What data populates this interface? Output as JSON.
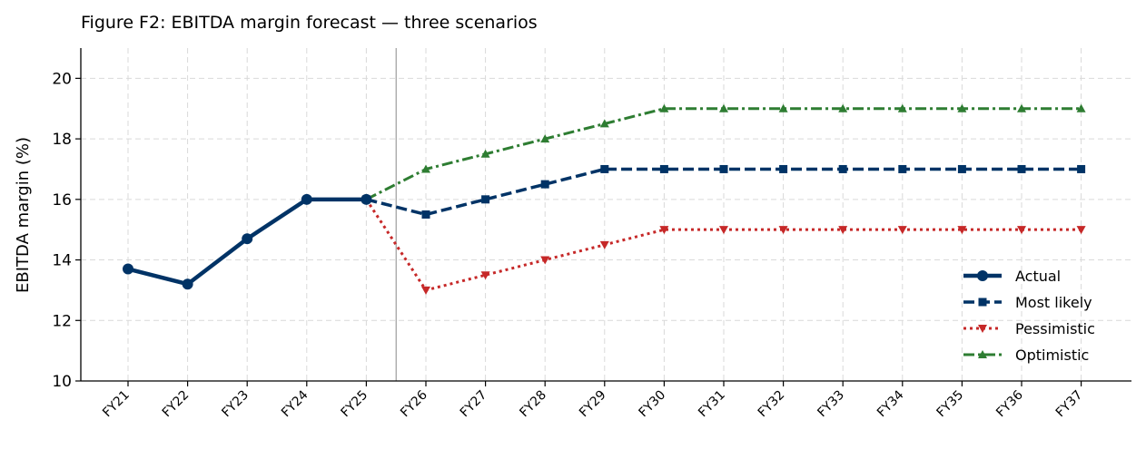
{
  "chart_data": {
    "type": "line",
    "title": "Figure F2: EBITDA margin forecast — three scenarios",
    "ylabel": "EBITDA margin (%)",
    "xlabel": "",
    "categories": [
      "FY21",
      "FY22",
      "FY23",
      "FY24",
      "FY25",
      "FY26",
      "FY27",
      "FY28",
      "FY29",
      "FY30",
      "FY31",
      "FY32",
      "FY33",
      "FY34",
      "FY35",
      "FY36",
      "FY37"
    ],
    "ylim": [
      10,
      21
    ],
    "yticks": [
      10,
      12,
      14,
      16,
      18,
      20
    ],
    "grid": true,
    "legend_position": "lower-right",
    "forecast_divider_between": [
      "FY25",
      "FY26"
    ],
    "series": [
      {
        "name": "Actual",
        "color": "#003366",
        "marker": "circle",
        "line_style": "solid",
        "x": [
          "FY21",
          "FY22",
          "FY23",
          "FY24",
          "FY25"
        ],
        "values": [
          13.7,
          13.2,
          14.7,
          16.0,
          16.0
        ]
      },
      {
        "name": "Most likely",
        "color": "#003366",
        "marker": "square",
        "line_style": "dashed",
        "x": [
          "FY25",
          "FY26",
          "FY27",
          "FY28",
          "FY29",
          "FY30",
          "FY31",
          "FY32",
          "FY33",
          "FY34",
          "FY35",
          "FY36",
          "FY37"
        ],
        "values": [
          16.0,
          15.5,
          16.0,
          16.5,
          17.0,
          17.0,
          17.0,
          17.0,
          17.0,
          17.0,
          17.0,
          17.0,
          17.0
        ]
      },
      {
        "name": "Pessimistic",
        "color": "#c62828",
        "marker": "triangle-down",
        "line_style": "dotted",
        "x": [
          "FY25",
          "FY26",
          "FY27",
          "FY28",
          "FY29",
          "FY30",
          "FY31",
          "FY32",
          "FY33",
          "FY34",
          "FY35",
          "FY36",
          "FY37"
        ],
        "values": [
          16.0,
          13.0,
          13.5,
          14.0,
          14.5,
          15.0,
          15.0,
          15.0,
          15.0,
          15.0,
          15.0,
          15.0,
          15.0
        ]
      },
      {
        "name": "Optimistic",
        "color": "#2e7d32",
        "marker": "triangle-up",
        "line_style": "dashdot",
        "x": [
          "FY25",
          "FY26",
          "FY27",
          "FY28",
          "FY29",
          "FY30",
          "FY31",
          "FY32",
          "FY33",
          "FY34",
          "FY35",
          "FY36",
          "FY37"
        ],
        "values": [
          16.0,
          17.0,
          17.5,
          18.0,
          18.5,
          19.0,
          19.0,
          19.0,
          19.0,
          19.0,
          19.0,
          19.0,
          19.0
        ]
      }
    ]
  }
}
